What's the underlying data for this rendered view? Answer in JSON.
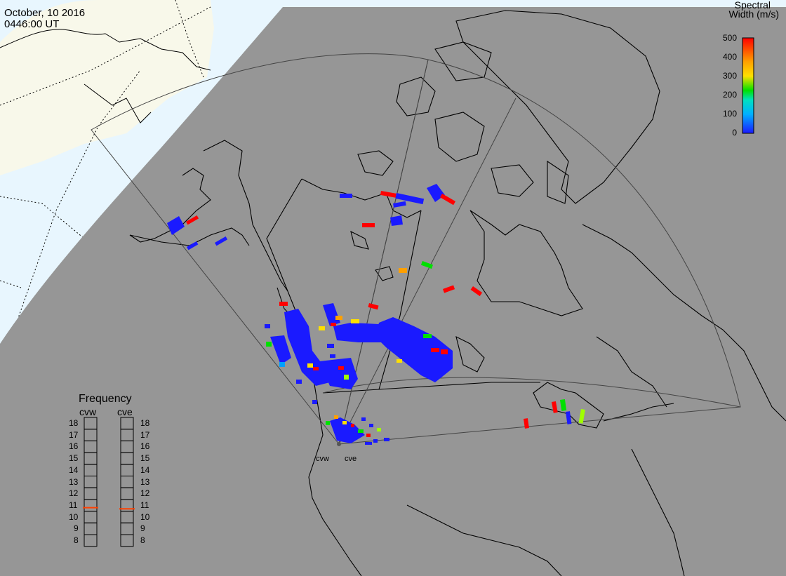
{
  "header": {
    "date": "October, 10 2016",
    "time": "0446:00 UT"
  },
  "colorbar": {
    "title_line1": "Spectral",
    "title_line2": "Width (m/s)",
    "ticks": [
      "500",
      "400",
      "300",
      "200",
      "100",
      "0"
    ],
    "range": [
      0,
      500
    ],
    "colors": [
      "#1a1aff",
      "#00a0ff",
      "#00e0c0",
      "#00e000",
      "#c0e000",
      "#ffe000",
      "#ffa000",
      "#ff4000",
      "#ff0000"
    ]
  },
  "radars": {
    "cvw": "cvw",
    "cve": "cve"
  },
  "frequency_panel": {
    "title": "Frequency",
    "columns": [
      "cvw",
      "cve"
    ],
    "scale": [
      "18",
      "17",
      "16",
      "15",
      "14",
      "13",
      "12",
      "11",
      "10",
      "9",
      "8"
    ],
    "cvw_value": 10.8,
    "cve_value": 10.7,
    "indicator_color": "#ff4000"
  },
  "map_colors": {
    "night": "#969696",
    "day_ocean": "#e8f6fe",
    "day_land": "#f8f8ea",
    "coast": "#000000",
    "fov": "#444444"
  }
}
